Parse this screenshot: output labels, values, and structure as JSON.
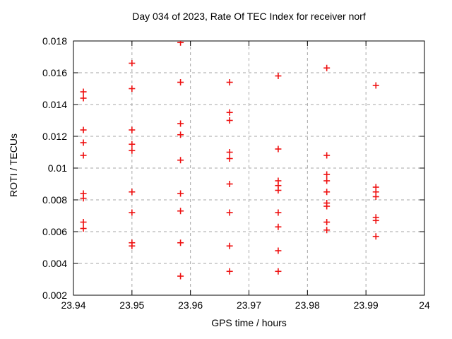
{
  "chart_data": {
    "type": "scatter",
    "title": "Day 034 of 2023, Rate Of TEC Index for receiver norf",
    "xlabel": "GPS time / hours",
    "ylabel": "ROTI / TECUs",
    "xlim": [
      23.94,
      24
    ],
    "ylim": [
      0.002,
      0.018
    ],
    "x_ticks": [
      {
        "value": 23.94,
        "label": "23.94"
      },
      {
        "value": 23.95,
        "label": "23.95"
      },
      {
        "value": 23.96,
        "label": "23.96"
      },
      {
        "value": 23.97,
        "label": "23.97"
      },
      {
        "value": 23.98,
        "label": "23.98"
      },
      {
        "value": 23.99,
        "label": "23.99"
      },
      {
        "value": 24.0,
        "label": "24"
      }
    ],
    "y_ticks": [
      {
        "value": 0.002,
        "label": "0.002"
      },
      {
        "value": 0.004,
        "label": "0.004"
      },
      {
        "value": 0.006,
        "label": "0.006"
      },
      {
        "value": 0.008,
        "label": "0.008"
      },
      {
        "value": 0.01,
        "label": "0.01"
      },
      {
        "value": 0.012,
        "label": "0.012"
      },
      {
        "value": 0.014,
        "label": "0.014"
      },
      {
        "value": 0.016,
        "label": "0.016"
      },
      {
        "value": 0.018,
        "label": "0.018"
      }
    ],
    "grid": {
      "show": true,
      "style": "dashed",
      "color": "#a6a6a6"
    },
    "border_color": "#000000",
    "legend": "none",
    "marker": {
      "shape": "plus",
      "color": "#ee1111",
      "size": 9,
      "stroke_width": 1.6
    },
    "series": [
      {
        "name": "ROTI",
        "points": [
          [
            23.9417,
            0.0148
          ],
          [
            23.9417,
            0.0144
          ],
          [
            23.9417,
            0.0124
          ],
          [
            23.9417,
            0.0116
          ],
          [
            23.9417,
            0.0108
          ],
          [
            23.9417,
            0.0084
          ],
          [
            23.9417,
            0.0081
          ],
          [
            23.9417,
            0.0066
          ],
          [
            23.9417,
            0.0062
          ],
          [
            23.95,
            0.0166
          ],
          [
            23.95,
            0.015
          ],
          [
            23.95,
            0.0124
          ],
          [
            23.95,
            0.0115
          ],
          [
            23.95,
            0.0111
          ],
          [
            23.95,
            0.0085
          ],
          [
            23.95,
            0.0072
          ],
          [
            23.95,
            0.0053
          ],
          [
            23.95,
            0.0051
          ],
          [
            23.9583,
            0.0179
          ],
          [
            23.9583,
            0.0154
          ],
          [
            23.9583,
            0.0128
          ],
          [
            23.9583,
            0.0121
          ],
          [
            23.9583,
            0.0105
          ],
          [
            23.9583,
            0.0084
          ],
          [
            23.9583,
            0.0073
          ],
          [
            23.9583,
            0.0053
          ],
          [
            23.9583,
            0.0032
          ],
          [
            23.9667,
            0.0154
          ],
          [
            23.9667,
            0.0135
          ],
          [
            23.9667,
            0.013
          ],
          [
            23.9667,
            0.011
          ],
          [
            23.9667,
            0.0106
          ],
          [
            23.9667,
            0.009
          ],
          [
            23.9667,
            0.0072
          ],
          [
            23.9667,
            0.0051
          ],
          [
            23.9667,
            0.0035
          ],
          [
            23.975,
            0.0158
          ],
          [
            23.975,
            0.0112
          ],
          [
            23.975,
            0.0092
          ],
          [
            23.975,
            0.0089
          ],
          [
            23.975,
            0.0086
          ],
          [
            23.975,
            0.0072
          ],
          [
            23.975,
            0.0063
          ],
          [
            23.975,
            0.0048
          ],
          [
            23.975,
            0.0035
          ],
          [
            23.9833,
            0.0163
          ],
          [
            23.9833,
            0.0108
          ],
          [
            23.9833,
            0.0096
          ],
          [
            23.9833,
            0.0092
          ],
          [
            23.9833,
            0.0085
          ],
          [
            23.9833,
            0.0078
          ],
          [
            23.9833,
            0.0076
          ],
          [
            23.9833,
            0.0066
          ],
          [
            23.9833,
            0.0061
          ],
          [
            23.9917,
            0.0152
          ],
          [
            23.9917,
            0.0088
          ],
          [
            23.9917,
            0.0085
          ],
          [
            23.9917,
            0.0082
          ],
          [
            23.9917,
            0.0069
          ],
          [
            23.9917,
            0.0067
          ],
          [
            23.9917,
            0.0057
          ]
        ]
      }
    ]
  }
}
